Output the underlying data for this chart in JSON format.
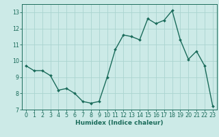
{
  "x": [
    0,
    1,
    2,
    3,
    4,
    5,
    6,
    7,
    8,
    9,
    10,
    11,
    12,
    13,
    14,
    15,
    16,
    17,
    18,
    19,
    20,
    21,
    22,
    23
  ],
  "y": [
    9.7,
    9.4,
    9.4,
    9.1,
    8.2,
    8.3,
    8.0,
    7.5,
    7.4,
    7.5,
    9.0,
    10.7,
    11.6,
    11.5,
    11.3,
    12.6,
    12.3,
    12.5,
    13.1,
    11.3,
    10.1,
    10.6,
    9.7,
    7.2
  ],
  "line_color": "#1a6b5a",
  "marker": "D",
  "marker_size": 2.0,
  "line_width": 1.0,
  "bg_color": "#cceae7",
  "grid_color": "#aad4d0",
  "xlabel": "Humidex (Indice chaleur)",
  "xlim": [
    -0.5,
    23.5
  ],
  "ylim": [
    7,
    13.5
  ],
  "yticks": [
    7,
    8,
    9,
    10,
    11,
    12,
    13
  ],
  "xticks": [
    0,
    1,
    2,
    3,
    4,
    5,
    6,
    7,
    8,
    9,
    10,
    11,
    12,
    13,
    14,
    15,
    16,
    17,
    18,
    19,
    20,
    21,
    22,
    23
  ],
  "tick_color": "#1a6b5a",
  "label_fontsize": 6.5,
  "tick_fontsize": 5.8,
  "spine_color": "#1a6b5a"
}
